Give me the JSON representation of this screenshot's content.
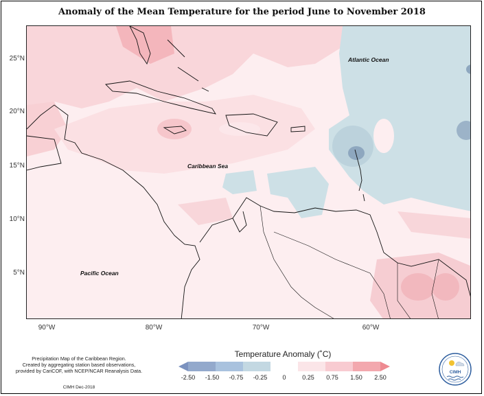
{
  "title": "Anomaly of the Mean Temperature for the period June to November 2018",
  "map": {
    "labels": {
      "atlantic": "Atlantic Ocean",
      "caribbean": "Caribbean Sea",
      "pacific": "Pacific Ocean"
    },
    "y_axis": [
      "25°N",
      "20°N",
      "15°N",
      "10°N",
      "5°N"
    ],
    "x_axis": [
      "90°W",
      "80°W",
      "70°W",
      "60°W"
    ],
    "colors": {
      "strong_warm": "#f4a7ab",
      "warm": "#f8cdd2",
      "mild_warm": "#fce4e7",
      "neutral": "#fdf0f2",
      "cool": "#cde0e6",
      "strong_cool": "#8ea7bf",
      "land_outline": "#111111"
    }
  },
  "legend": {
    "title": "Temperature Anomaly (˚C)",
    "labels": [
      "-2.50",
      "-1.50",
      "-0.75",
      "-0.25",
      "0",
      "0.25",
      "0.75",
      "1.50",
      "2.50"
    ],
    "colors": [
      "#7b92bf",
      "#93a9cc",
      "#a9c2de",
      "#c3d8e2",
      "#ffffff",
      "#fbe5e8",
      "#f8cbd1",
      "#f3a8ae",
      "#ee8a91"
    ]
  },
  "credits": {
    "line1": "Precipitation Map of the Caribbean Region.",
    "line2": "Created by aggregating station based observations,",
    "line3": "provided by CariCOF, with NCEP/NCAR Reanalysis Data.",
    "date": "CIMH Dec-2018"
  },
  "logo": {
    "text": "CIMH",
    "icon": "cimh-logo-icon"
  }
}
